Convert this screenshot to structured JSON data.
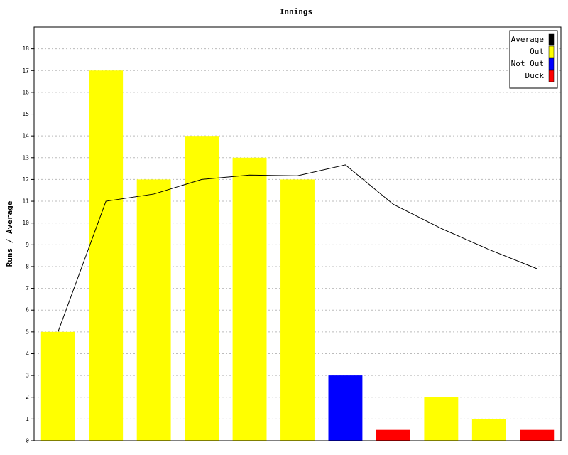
{
  "chart_data": {
    "type": "bar",
    "title": "Innings",
    "y_label": "Runs / Average",
    "categories": [
      null,
      null,
      null,
      null,
      null,
      null,
      null,
      null,
      null,
      null,
      null
    ],
    "series": [
      {
        "name": "Average",
        "type": "line",
        "color": "#000000",
        "values": [
          5,
          11,
          11.33,
          12,
          12.2,
          12.17,
          12.67,
          10.86,
          9.75,
          8.78,
          7.9
        ]
      },
      {
        "name": "Out",
        "color": "#ffff00",
        "values": [
          5,
          17,
          12,
          14,
          13,
          12,
          null,
          null,
          2,
          1,
          null
        ]
      },
      {
        "name": "Not Out",
        "color": "#0000ff",
        "values": [
          null,
          null,
          null,
          null,
          null,
          null,
          3,
          null,
          null,
          null,
          null
        ]
      },
      {
        "name": "Duck",
        "color": "#ff0000",
        "values": [
          null,
          null,
          null,
          null,
          null,
          null,
          null,
          0.5,
          null,
          null,
          0.5
        ]
      }
    ],
    "ylim": [
      0,
      19
    ],
    "yticks": [
      0,
      1,
      2,
      3,
      4,
      5,
      6,
      7,
      8,
      9,
      10,
      11,
      12,
      13,
      14,
      15,
      16,
      17,
      18
    ],
    "grid": true,
    "legend": "upper right"
  }
}
